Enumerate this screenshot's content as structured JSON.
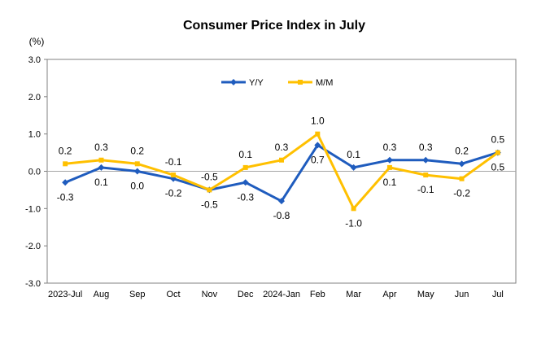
{
  "chart_data": {
    "type": "line",
    "title": "Consumer Price Index in July",
    "ylabel": "(%)",
    "xlabel": "",
    "ylim": [
      -3.0,
      3.0
    ],
    "yticks": [
      "3.0",
      "2.0",
      "1.0",
      "0.0",
      "-1.0",
      "-2.0",
      "-3.0"
    ],
    "ytick_values": [
      3,
      2,
      1,
      0,
      -1,
      -2,
      -3
    ],
    "categories": [
      "2023-Jul",
      "Aug",
      "Sep",
      "Oct",
      "Nov",
      "Dec",
      "2024-Jan",
      "Feb",
      "Mar",
      "Apr",
      "May",
      "Jun",
      "Jul"
    ],
    "grid": false,
    "legend_position": "top-center",
    "series": [
      {
        "name": "Y/Y",
        "color": "#1F5CBE",
        "marker": "diamond",
        "values": [
          -0.3,
          0.1,
          0.0,
          -0.2,
          -0.5,
          -0.3,
          -0.8,
          0.7,
          0.1,
          0.3,
          0.3,
          0.2,
          0.5
        ],
        "labels": [
          "-0.3",
          "0.1",
          "0.0",
          "-0.2",
          "-0.5",
          "-0.3",
          "-0.8",
          "0.7",
          "0.1",
          "0.3",
          "0.3",
          "0.2",
          "0.5"
        ]
      },
      {
        "name": "M/M",
        "color": "#FFC000",
        "marker": "square",
        "values": [
          0.2,
          0.3,
          0.2,
          -0.1,
          -0.5,
          0.1,
          0.3,
          1.0,
          -1.0,
          0.1,
          -0.1,
          -0.2,
          0.5
        ],
        "labels": [
          "0.2",
          "0.3",
          "0.2",
          "-0.1",
          "-0.5",
          "0.1",
          "0.3",
          "1.0",
          "-1.0",
          "0.1",
          "-0.1",
          "-0.2",
          "0.5"
        ]
      }
    ]
  }
}
